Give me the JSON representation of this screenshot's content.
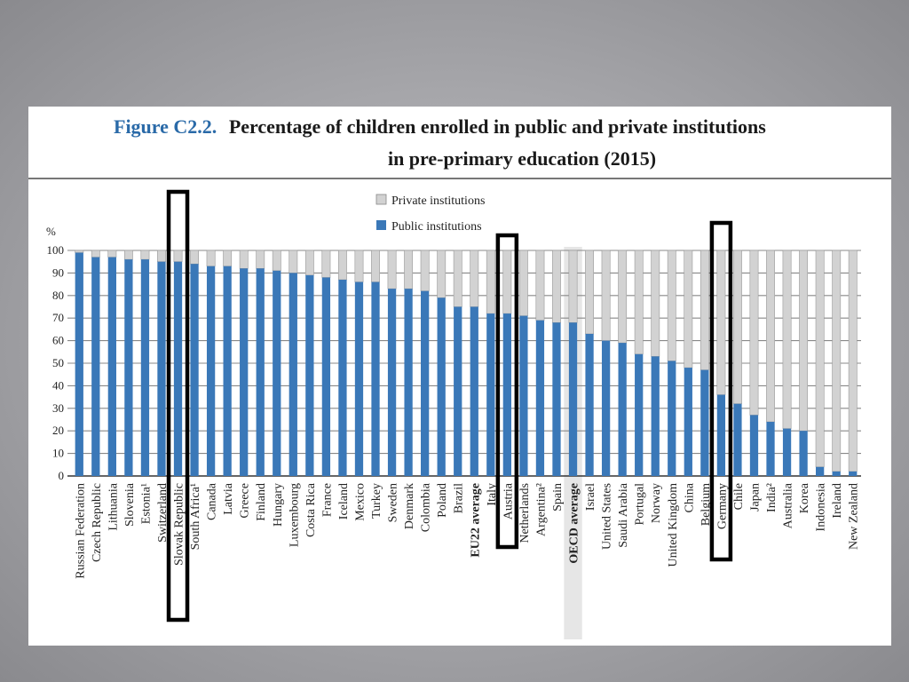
{
  "figure_label": "Figure C2.2.",
  "title_line1": "Percentage of children enrolled in public and private institutions",
  "title_line2": "in pre-primary education (2015)",
  "colors": {
    "public": "#3a78b8",
    "private": "#d2d2d2",
    "figure_label": "#2a6aa8",
    "highlight_box": "#000000",
    "oecd_band": "#e6e6e6"
  },
  "chart_data": {
    "type": "bar",
    "stacked": true,
    "title": "Percentage of children enrolled in public and private institutions in pre-primary education (2015)",
    "ylabel": "%",
    "ylim": [
      0,
      100
    ],
    "yticks": [
      0,
      10,
      20,
      30,
      40,
      50,
      60,
      70,
      80,
      90,
      100
    ],
    "grid": true,
    "legend_position": "top-center",
    "categories": [
      "Russian Federation",
      "Czech Republic",
      "Lithuania",
      "Slovenia",
      "Estonia¹",
      "Switzerland",
      "Slovak Republic",
      "South Africa¹",
      "Canada",
      "Latvia",
      "Greece",
      "Finland",
      "Hungary",
      "Luxembourg",
      "Costa Rica",
      "France",
      "Iceland",
      "Mexico",
      "Turkey",
      "Sweden",
      "Denmark",
      "Colombia",
      "Poland",
      "Brazil",
      "EU22 average",
      "Italy",
      "Austria",
      "Netherlands",
      "Argentina²",
      "Spain",
      "OECD average",
      "Israel",
      "United States",
      "Saudi Arabia",
      "Portugal",
      "Norway",
      "United Kingdom",
      "China",
      "Belgium",
      "Germany",
      "Chile",
      "Japan",
      "India²",
      "Australia",
      "Korea",
      "Indonesia",
      "Ireland",
      "New Zealand"
    ],
    "bold_categories": [
      "EU22 average",
      "OECD average"
    ],
    "shaded_category": "OECD average",
    "highlighted_categories": [
      "Slovak Republic",
      "Austria",
      "Germany"
    ],
    "series": [
      {
        "name": "Public institutions",
        "values": [
          99,
          97,
          97,
          96,
          96,
          95,
          95,
          94,
          93,
          93,
          92,
          92,
          91,
          90,
          89,
          88,
          87,
          86,
          86,
          83,
          83,
          82,
          79,
          75,
          75,
          72,
          72,
          71,
          69,
          68,
          68,
          63,
          60,
          59,
          54,
          53,
          51,
          48,
          47,
          36,
          32,
          27,
          24,
          21,
          20,
          4,
          2,
          2
        ]
      },
      {
        "name": "Private institutions",
        "values": [
          1,
          3,
          3,
          4,
          4,
          5,
          5,
          6,
          7,
          7,
          8,
          8,
          9,
          10,
          11,
          12,
          13,
          14,
          14,
          17,
          17,
          18,
          21,
          25,
          25,
          28,
          28,
          29,
          31,
          32,
          32,
          37,
          40,
          41,
          46,
          47,
          49,
          52,
          53,
          64,
          68,
          73,
          76,
          79,
          80,
          96,
          98,
          98
        ]
      }
    ]
  }
}
